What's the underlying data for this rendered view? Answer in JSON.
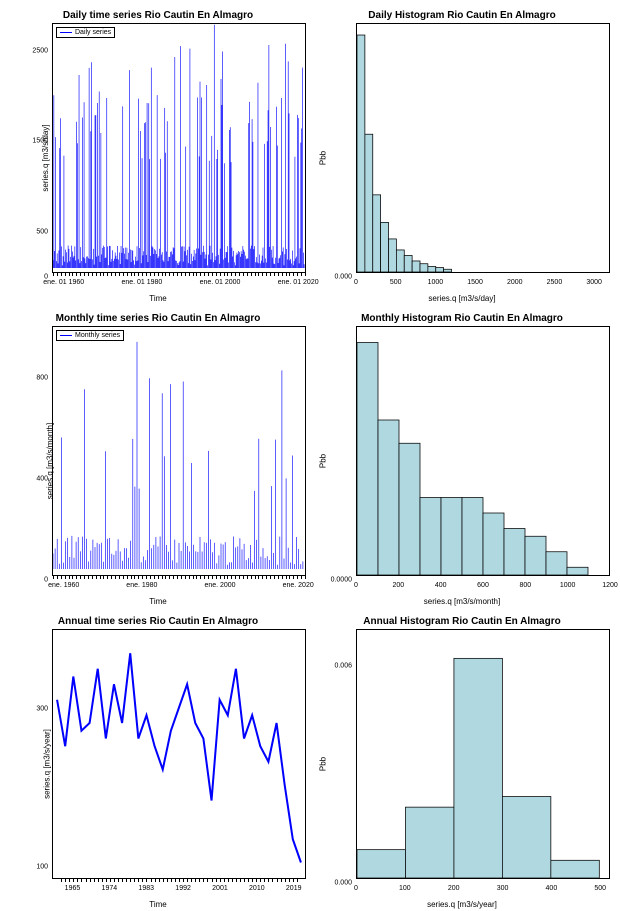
{
  "panels": {
    "daily_ts": {
      "title": "Daily time series Rio Cautin En Almagro",
      "ylabel": "series.q  [m3/s/day]",
      "xlabel": "Time",
      "legend": "Daily series",
      "yticks": [
        {
          "v": 0,
          "l": "0"
        },
        {
          "v": 500,
          "l": "500"
        },
        {
          "v": 1500,
          "l": "1500"
        },
        {
          "v": 2500,
          "l": "2500"
        }
      ],
      "ylim": [
        0,
        2800
      ],
      "xticks": [
        {
          "v": 1960,
          "l": "ene. 01 1960"
        },
        {
          "v": 1980,
          "l": "ene. 01 1980"
        },
        {
          "v": 2000,
          "l": "ene. 01 2000"
        },
        {
          "v": 2020,
          "l": "ene. 01 2020"
        }
      ],
      "xlim": [
        1957,
        2022
      ],
      "color": "#0000ff",
      "n_spikes": 300,
      "base": 150,
      "peaks": [
        2800,
        2600,
        2400,
        2200,
        2000,
        1800,
        1600
      ]
    },
    "daily_hist": {
      "title": "Daily Histogram Rio Cautin En Almagro",
      "ylabel": "Pbb",
      "xlabel": "series.q [m3/s/day]",
      "yticks": [
        {
          "v": 0,
          "l": "0.000"
        },
        {
          "v": 0.002,
          "l": ""
        },
        {
          "v": 0.004,
          "l": ""
        }
      ],
      "ylim": [
        0,
        0.0045
      ],
      "xticks": [
        {
          "v": 0,
          "l": "0"
        },
        {
          "v": 500,
          "l": "500"
        },
        {
          "v": 1000,
          "l": "1000"
        },
        {
          "v": 1500,
          "l": "1500"
        },
        {
          "v": 2000,
          "l": "2000"
        },
        {
          "v": 2500,
          "l": "2500"
        },
        {
          "v": 3000,
          "l": "3000"
        }
      ],
      "xlim": [
        0,
        3200
      ],
      "bar_color": "#b0d8e0",
      "bar_border": "#000000",
      "bins": [
        {
          "x": 0,
          "w": 100,
          "h": 0.0043
        },
        {
          "x": 100,
          "w": 100,
          "h": 0.0025
        },
        {
          "x": 200,
          "w": 100,
          "h": 0.0014
        },
        {
          "x": 300,
          "w": 100,
          "h": 0.0009
        },
        {
          "x": 400,
          "w": 100,
          "h": 0.0006
        },
        {
          "x": 500,
          "w": 100,
          "h": 0.0004
        },
        {
          "x": 600,
          "w": 100,
          "h": 0.0003
        },
        {
          "x": 700,
          "w": 100,
          "h": 0.0002
        },
        {
          "x": 800,
          "w": 100,
          "h": 0.00015
        },
        {
          "x": 900,
          "w": 100,
          "h": 0.0001
        },
        {
          "x": 1000,
          "w": 100,
          "h": 8e-05
        },
        {
          "x": 1100,
          "w": 100,
          "h": 5e-05
        }
      ]
    },
    "monthly_ts": {
      "title": "Monthly time series Rio Cautin En Almagro",
      "ylabel": "series.q  [m3/s/month]",
      "xlabel": "Time",
      "legend": "Monthly series",
      "yticks": [
        {
          "v": 0,
          "l": "0"
        },
        {
          "v": 400,
          "l": "400"
        },
        {
          "v": 800,
          "l": "800"
        }
      ],
      "ylim": [
        0,
        1000
      ],
      "xticks": [
        {
          "v": 1960,
          "l": "ene. 1960"
        },
        {
          "v": 1980,
          "l": "ene. 1980"
        },
        {
          "v": 2000,
          "l": "ene. 2000"
        },
        {
          "v": 2020,
          "l": "ene. 2020"
        }
      ],
      "xlim": [
        1957,
        2022
      ],
      "color": "#0000ff",
      "n_spikes": 120,
      "base": 80,
      "peaks": [
        950,
        850,
        750,
        650,
        550,
        450
      ]
    },
    "monthly_hist": {
      "title": "Monthly Histogram Rio Cautin En Almagro",
      "ylabel": "Pbb",
      "xlabel": "series.q [m3/s/month]",
      "yticks": [
        {
          "v": 0,
          "l": "0.0000"
        },
        {
          "v": 0.0015,
          "l": ""
        },
        {
          "v": 0.003,
          "l": ""
        }
      ],
      "ylim": [
        0,
        0.0032
      ],
      "xticks": [
        {
          "v": 0,
          "l": "0"
        },
        {
          "v": 200,
          "l": "200"
        },
        {
          "v": 400,
          "l": "400"
        },
        {
          "v": 600,
          "l": "600"
        },
        {
          "v": 800,
          "l": "800"
        },
        {
          "v": 1000,
          "l": "1000"
        },
        {
          "v": 1200,
          "l": "1200"
        }
      ],
      "xlim": [
        0,
        1200
      ],
      "bar_color": "#b0d8e0",
      "bar_border": "#000000",
      "bins": [
        {
          "x": 0,
          "w": 100,
          "h": 0.003
        },
        {
          "x": 100,
          "w": 100,
          "h": 0.002
        },
        {
          "x": 200,
          "w": 100,
          "h": 0.0017
        },
        {
          "x": 300,
          "w": 100,
          "h": 0.001
        },
        {
          "x": 400,
          "w": 100,
          "h": 0.001
        },
        {
          "x": 500,
          "w": 100,
          "h": 0.001
        },
        {
          "x": 600,
          "w": 100,
          "h": 0.0008
        },
        {
          "x": 700,
          "w": 100,
          "h": 0.0006
        },
        {
          "x": 800,
          "w": 100,
          "h": 0.0005
        },
        {
          "x": 900,
          "w": 100,
          "h": 0.0003
        },
        {
          "x": 1000,
          "w": 100,
          "h": 0.0001
        }
      ]
    },
    "annual_ts": {
      "title": "Annual time series Rio Cautin En Almagro",
      "ylabel": "series.q  [m3/s/year]",
      "xlabel": "Time",
      "yticks": [
        {
          "v": 100,
          "l": "100"
        },
        {
          "v": 300,
          "l": "300"
        }
      ],
      "ylim": [
        80,
        400
      ],
      "xticks": [
        {
          "v": 1965,
          "l": "1965"
        },
        {
          "v": 1974,
          "l": "1974"
        },
        {
          "v": 1983,
          "l": "1983"
        },
        {
          "v": 1992,
          "l": "1992"
        },
        {
          "v": 2001,
          "l": "2001"
        },
        {
          "v": 2010,
          "l": "2010"
        },
        {
          "v": 2019,
          "l": "2019"
        }
      ],
      "xlim": [
        1960,
        2022
      ],
      "color": "#0000ff",
      "line_data": [
        [
          1961,
          310
        ],
        [
          1963,
          250
        ],
        [
          1965,
          340
        ],
        [
          1967,
          270
        ],
        [
          1969,
          280
        ],
        [
          1971,
          350
        ],
        [
          1973,
          260
        ],
        [
          1975,
          330
        ],
        [
          1977,
          280
        ],
        [
          1979,
          370
        ],
        [
          1981,
          260
        ],
        [
          1983,
          290
        ],
        [
          1985,
          250
        ],
        [
          1987,
          220
        ],
        [
          1989,
          270
        ],
        [
          1991,
          300
        ],
        [
          1993,
          330
        ],
        [
          1995,
          280
        ],
        [
          1997,
          260
        ],
        [
          1999,
          180
        ],
        [
          2001,
          310
        ],
        [
          2003,
          290
        ],
        [
          2005,
          350
        ],
        [
          2007,
          260
        ],
        [
          2009,
          290
        ],
        [
          2011,
          250
        ],
        [
          2013,
          230
        ],
        [
          2015,
          280
        ],
        [
          2017,
          200
        ],
        [
          2019,
          130
        ],
        [
          2021,
          100
        ]
      ]
    },
    "annual_hist": {
      "title": "Annual Histogram Rio Cautin En Almagro",
      "ylabel": "Pbb",
      "xlabel": "series.q [m3/s/year]",
      "yticks": [
        {
          "v": 0,
          "l": "0.000"
        },
        {
          "v": 0.003,
          "l": ""
        },
        {
          "v": 0.006,
          "l": "0.006"
        }
      ],
      "ylim": [
        0,
        0.007
      ],
      "xticks": [
        {
          "v": 0,
          "l": "0"
        },
        {
          "v": 100,
          "l": "100"
        },
        {
          "v": 200,
          "l": "200"
        },
        {
          "v": 300,
          "l": "300"
        },
        {
          "v": 400,
          "l": "400"
        },
        {
          "v": 500,
          "l": "500"
        }
      ],
      "xlim": [
        0,
        520
      ],
      "bar_color": "#b0d8e0",
      "bar_border": "#000000",
      "bins": [
        {
          "x": 0,
          "w": 100,
          "h": 0.0008
        },
        {
          "x": 100,
          "w": 100,
          "h": 0.002
        },
        {
          "x": 200,
          "w": 100,
          "h": 0.0062
        },
        {
          "x": 300,
          "w": 100,
          "h": 0.0023
        },
        {
          "x": 400,
          "w": 100,
          "h": 0.0005
        }
      ]
    }
  }
}
